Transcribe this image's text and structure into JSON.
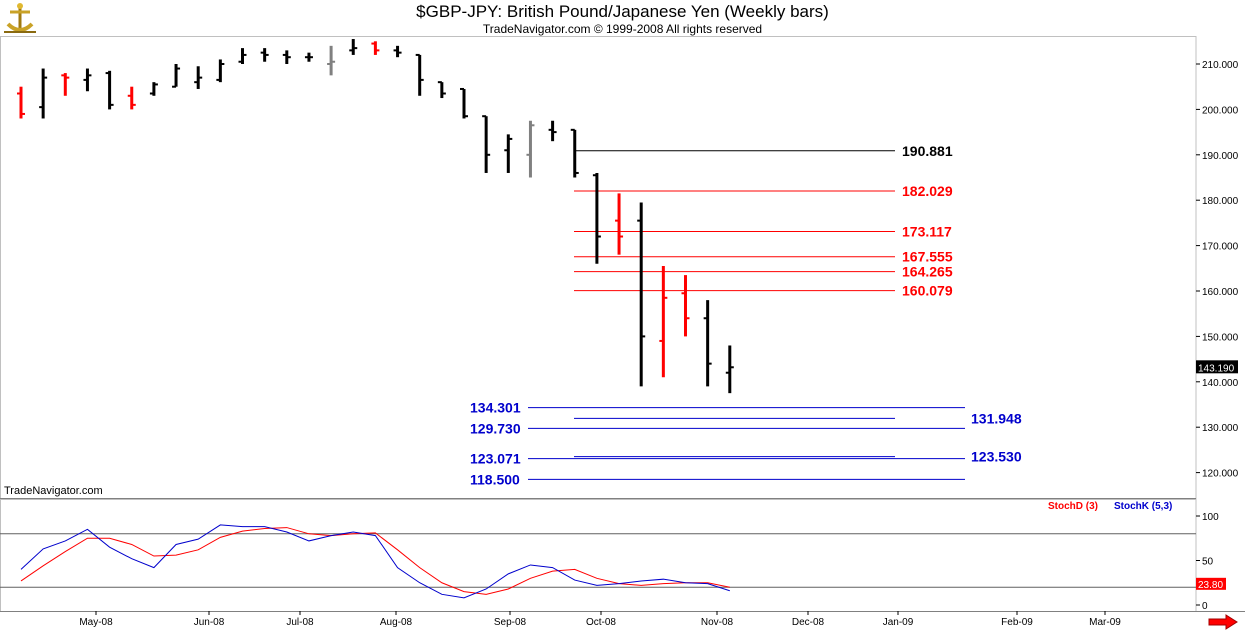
{
  "header": {
    "title": "$GBP-JPY:  British Pound/Japanese Yen  (Weekly bars)",
    "subtitle": "TradeNavigator.com © 1999-2008 All rights reserved",
    "watermark": "TradeNavigator.com"
  },
  "colors": {
    "up_bar": "#000000",
    "down_bar": "#ff0000",
    "doji_bar": "#808080",
    "resistance": "#ff0000",
    "support": "#0000cc",
    "stochD": "#ff0000",
    "stochK": "#0000cc"
  },
  "chart_data": [
    {
      "type": "ohlc",
      "title": "$GBP-JPY:  British Pound/Japanese Yen  (Weekly bars)",
      "ylim": [
        113,
        217
      ],
      "yticks": [
        "120.000",
        "130.000",
        "140.000",
        "150.000",
        "160.000",
        "170.000",
        "180.000",
        "190.000",
        "200.000",
        "210.000"
      ],
      "last_price": "143.190",
      "bars": [
        {
          "o": 203.5,
          "h": 205.0,
          "l": 198.0,
          "c": 199.0,
          "color": "red"
        },
        {
          "o": 200.5,
          "h": 209.0,
          "l": 198.0,
          "c": 207.0,
          "color": "black"
        },
        {
          "o": 207.5,
          "h": 208.0,
          "l": 203.0,
          "c": 207.0,
          "color": "red"
        },
        {
          "o": 206.5,
          "h": 209.0,
          "l": 204.0,
          "c": 207.5,
          "color": "black"
        },
        {
          "o": 208.0,
          "h": 208.5,
          "l": 200.0,
          "c": 201.0,
          "color": "black"
        },
        {
          "o": 203.0,
          "h": 205.0,
          "l": 200.0,
          "c": 201.0,
          "color": "red"
        },
        {
          "o": 203.5,
          "h": 206.0,
          "l": 203.0,
          "c": 205.5,
          "color": "black"
        },
        {
          "o": 205.0,
          "h": 210.0,
          "l": 205.0,
          "c": 209.0,
          "color": "black"
        },
        {
          "o": 206.0,
          "h": 209.5,
          "l": 204.5,
          "c": 207.0,
          "color": "black"
        },
        {
          "o": 206.5,
          "h": 211.0,
          "l": 206.0,
          "c": 210.0,
          "color": "black"
        },
        {
          "o": 210.5,
          "h": 213.5,
          "l": 210.0,
          "c": 212.0,
          "color": "black"
        },
        {
          "o": 212.5,
          "h": 213.5,
          "l": 210.5,
          "c": 212.0,
          "color": "black"
        },
        {
          "o": 212.0,
          "h": 213.0,
          "l": 210.0,
          "c": 211.5,
          "color": "black"
        },
        {
          "o": 211.5,
          "h": 212.5,
          "l": 210.5,
          "c": 211.5,
          "color": "black"
        },
        {
          "o": 210.0,
          "h": 214.0,
          "l": 207.5,
          "c": 210.5,
          "color": "gray"
        },
        {
          "o": 213.0,
          "h": 215.5,
          "l": 212.0,
          "c": 213.5,
          "color": "black"
        },
        {
          "o": 214.5,
          "h": 215.0,
          "l": 212.0,
          "c": 213.0,
          "color": "red"
        },
        {
          "o": 213.0,
          "h": 214.0,
          "l": 211.5,
          "c": 212.5,
          "color": "black"
        },
        {
          "o": 212.0,
          "h": 212.0,
          "l": 203.0,
          "c": 206.5,
          "color": "black"
        },
        {
          "o": 206.0,
          "h": 206.0,
          "l": 202.5,
          "c": 203.5,
          "color": "black"
        },
        {
          "o": 204.5,
          "h": 204.5,
          "l": 198.0,
          "c": 198.5,
          "color": "black"
        },
        {
          "o": 198.5,
          "h": 198.5,
          "l": 186.0,
          "c": 190.0,
          "color": "black"
        },
        {
          "o": 191.0,
          "h": 194.5,
          "l": 186.0,
          "c": 193.5,
          "color": "black"
        },
        {
          "o": 190.0,
          "h": 197.5,
          "l": 185.0,
          "c": 196.5,
          "color": "gray"
        },
        {
          "o": 195.5,
          "h": 197.5,
          "l": 193.0,
          "c": 195.0,
          "color": "black"
        },
        {
          "o": 195.5,
          "h": 195.5,
          "l": 185.0,
          "c": 186.0,
          "color": "black"
        },
        {
          "o": 185.5,
          "h": 186.0,
          "l": 166.0,
          "c": 172.0,
          "color": "black"
        },
        {
          "o": 175.5,
          "h": 181.5,
          "l": 168.0,
          "c": 172.0,
          "color": "red"
        },
        {
          "o": 175.5,
          "h": 179.5,
          "l": 139.0,
          "c": 150.0,
          "color": "black"
        },
        {
          "o": 149.0,
          "h": 165.5,
          "l": 141.0,
          "c": 158.5,
          "color": "red"
        },
        {
          "o": 159.5,
          "h": 163.5,
          "l": 150.0,
          "c": 154.0,
          "color": "red"
        },
        {
          "o": 154.0,
          "h": 158.0,
          "l": 139.0,
          "c": 144.0,
          "color": "black"
        },
        {
          "o": 142.0,
          "h": 148.0,
          "l": 137.5,
          "c": 143.2,
          "color": "black"
        }
      ],
      "levels": [
        {
          "label": "190.881",
          "value": 190.881,
          "color": "#000000",
          "side": "right"
        },
        {
          "label": "182.029",
          "value": 182.029,
          "color": "#ff0000",
          "side": "right"
        },
        {
          "label": "173.117",
          "value": 173.117,
          "color": "#ff0000",
          "side": "right"
        },
        {
          "label": "167.555",
          "value": 167.555,
          "color": "#ff0000",
          "side": "right"
        },
        {
          "label": "164.265",
          "value": 164.265,
          "color": "#ff0000",
          "side": "right"
        },
        {
          "label": "160.079",
          "value": 160.079,
          "color": "#ff0000",
          "side": "right"
        },
        {
          "label": "134.301",
          "value": 134.301,
          "color": "#0000cc",
          "side": "left"
        },
        {
          "label": "131.948",
          "value": 131.948,
          "color": "#0000cc",
          "side": "right"
        },
        {
          "label": "129.730",
          "value": 129.73,
          "color": "#0000cc",
          "side": "left"
        },
        {
          "label": "123.530",
          "value": 123.53,
          "color": "#0000cc",
          "side": "right"
        },
        {
          "label": "123.071",
          "value": 123.071,
          "color": "#0000cc",
          "side": "left"
        },
        {
          "label": "118.500",
          "value": 118.5,
          "color": "#0000cc",
          "side": "left"
        }
      ]
    },
    {
      "type": "line",
      "ylim": [
        -15,
        110
      ],
      "yticks": [
        "100",
        "50",
        "0"
      ],
      "reference_lines": [
        80,
        20
      ],
      "last_value": "23.80",
      "series": [
        {
          "name": "StochD (3)",
          "color": "#ff0000",
          "values": [
            27,
            44,
            60,
            75,
            75,
            68,
            55,
            56,
            62,
            76,
            83,
            86,
            87,
            80,
            78,
            80,
            81,
            62,
            42,
            25,
            15,
            12,
            18,
            30,
            38,
            40,
            30,
            24,
            22,
            24,
            25,
            25,
            20
          ]
        },
        {
          "name": "StochK (5,3)",
          "color": "#0000cc",
          "values": [
            40,
            63,
            72,
            85,
            65,
            52,
            42,
            68,
            74,
            90,
            88,
            88,
            82,
            72,
            78,
            82,
            78,
            42,
            25,
            12,
            8,
            18,
            35,
            45,
            42,
            28,
            22,
            24,
            27,
            29,
            25,
            24,
            16
          ]
        }
      ],
      "x_labels": [
        "May-08",
        "Jun-08",
        "Jul-08",
        "Aug-08",
        "Sep-08",
        "Oct-08",
        "Nov-08",
        "Dec-08",
        "Jan-09",
        "Feb-09",
        "Mar-09"
      ]
    }
  ]
}
